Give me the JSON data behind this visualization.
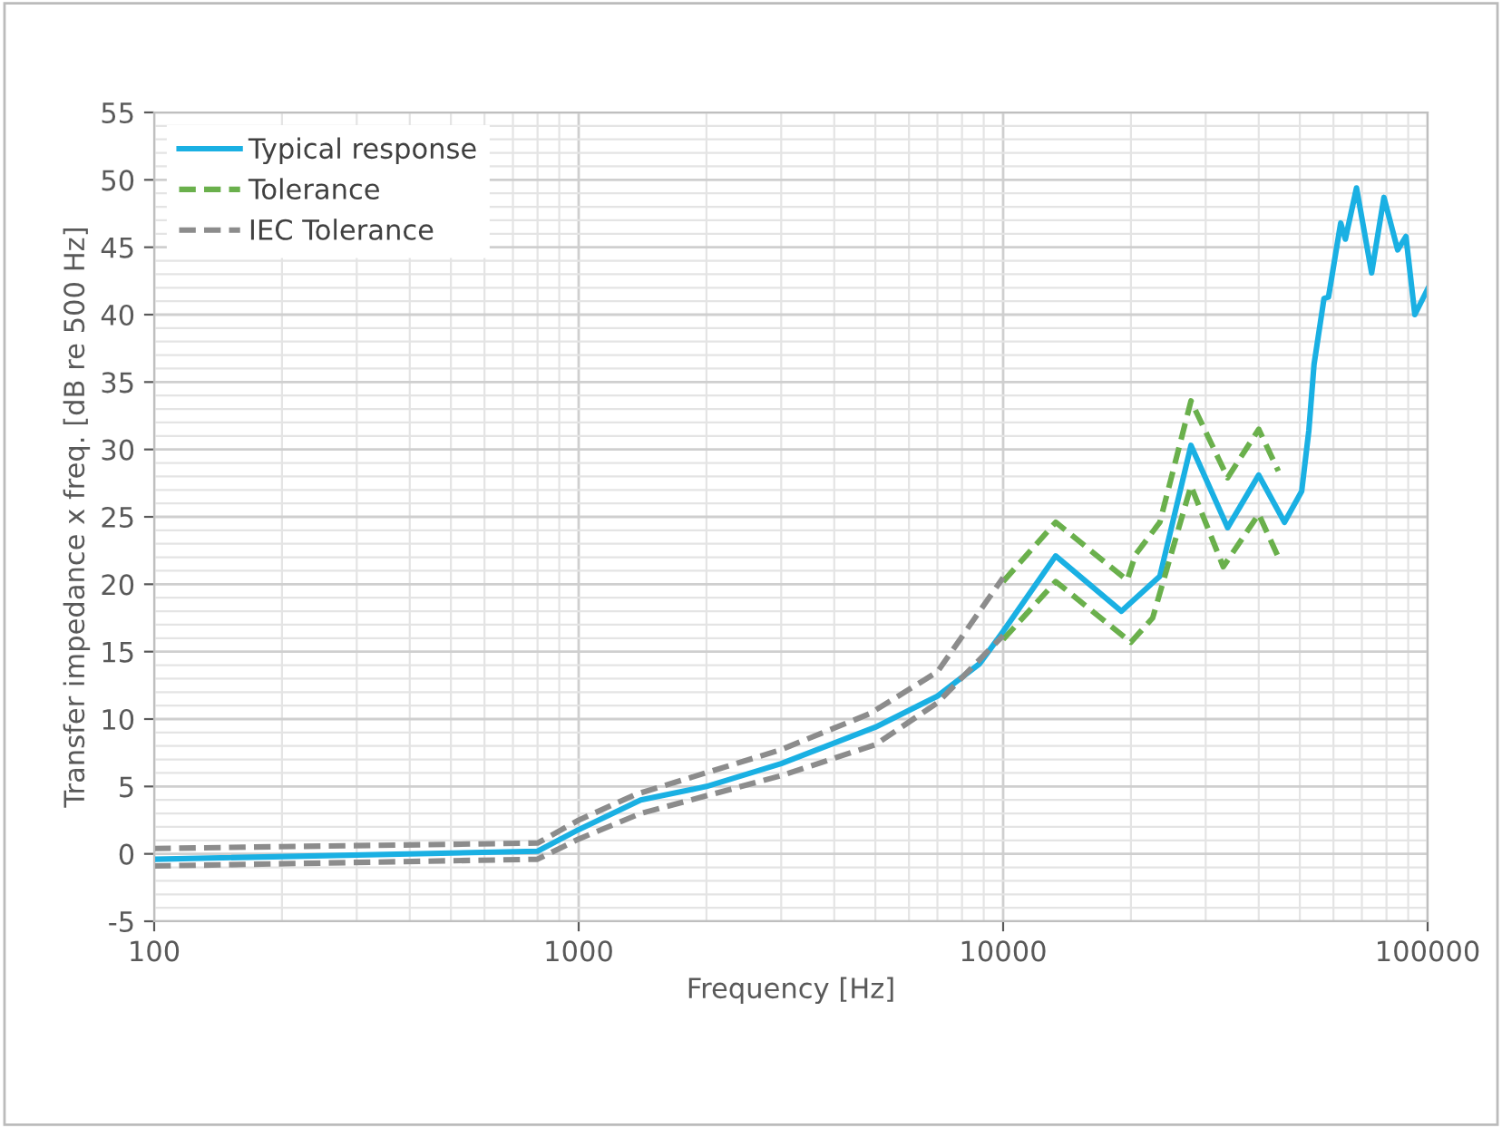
{
  "chart_data": {
    "type": "line",
    "xlabel": "Frequency [Hz]",
    "ylabel": "Transfer impedance x freq. [dB re 500 Hz]",
    "log": "x",
    "xlim": [
      100,
      100000
    ],
    "xticks": [
      100,
      1000,
      10000,
      100000
    ],
    "ylim": [
      -5,
      55
    ],
    "yticks": [
      -5,
      0,
      5,
      10,
      15,
      20,
      25,
      30,
      35,
      40,
      45,
      50,
      55
    ],
    "grid": true,
    "legend": "top left",
    "marker": "none",
    "series": [
      {
        "name": "Typical response",
        "color": "#1ab0e3",
        "line_style": "solid",
        "x": [
          100,
          800,
          1000,
          1400,
          2000,
          3000,
          5000,
          7000,
          8800,
          10000,
          13300,
          19000,
          23400,
          27700,
          33800,
          40000,
          46000,
          50500,
          52500,
          54000,
          57000,
          58400,
          62400,
          64000,
          68000,
          73800,
          78900,
          85000,
          88900,
          93300,
          100000
        ],
        "values": [
          -0.4,
          0.2,
          1.8,
          4.0,
          5.0,
          6.7,
          9.4,
          11.7,
          14.1,
          16.5,
          22.1,
          18.0,
          20.6,
          30.3,
          24.2,
          28.1,
          24.6,
          26.9,
          31.4,
          36.3,
          41.2,
          41.3,
          46.8,
          45.6,
          49.4,
          43.1,
          48.7,
          44.8,
          45.8,
          40.0,
          41.9
        ]
      },
      {
        "name": "Tolerance",
        "color": "#6ab04c",
        "line_style": "dashed",
        "x": [
          10000,
          13300,
          19600,
          20500,
          23400,
          27700,
          33800,
          40000,
          44500
        ],
        "values": [
          20.2,
          24.6,
          20.3,
          22.2,
          24.6,
          33.6,
          27.9,
          31.5,
          28.4
        ]
      },
      {
        "color": "#6ab04c",
        "line_style": "dashed",
        "x": [
          10000,
          13300,
          20000,
          22500,
          27700,
          33000,
          40000,
          44500
        ],
        "values": [
          15.9,
          20.2,
          15.7,
          17.5,
          27.3,
          21.3,
          25.2,
          22.0
        ]
      },
      {
        "name": "IEC Tolerance",
        "color": "#8c8c8c",
        "line_style": "dashed",
        "x": [
          100,
          800,
          1000,
          1360,
          2980,
          4850,
          7000,
          10000
        ],
        "values": [
          0.4,
          0.8,
          2.5,
          4.4,
          7.7,
          10.4,
          13.5,
          20.5
        ]
      },
      {
        "color": "#8c8c8c",
        "line_style": "dashed",
        "x": [
          100,
          800,
          1000,
          1400,
          3000,
          5000,
          7000,
          10000
        ],
        "values": [
          -0.9,
          -0.4,
          1.1,
          3.0,
          5.8,
          8.1,
          11.2,
          16.2
        ]
      }
    ]
  }
}
